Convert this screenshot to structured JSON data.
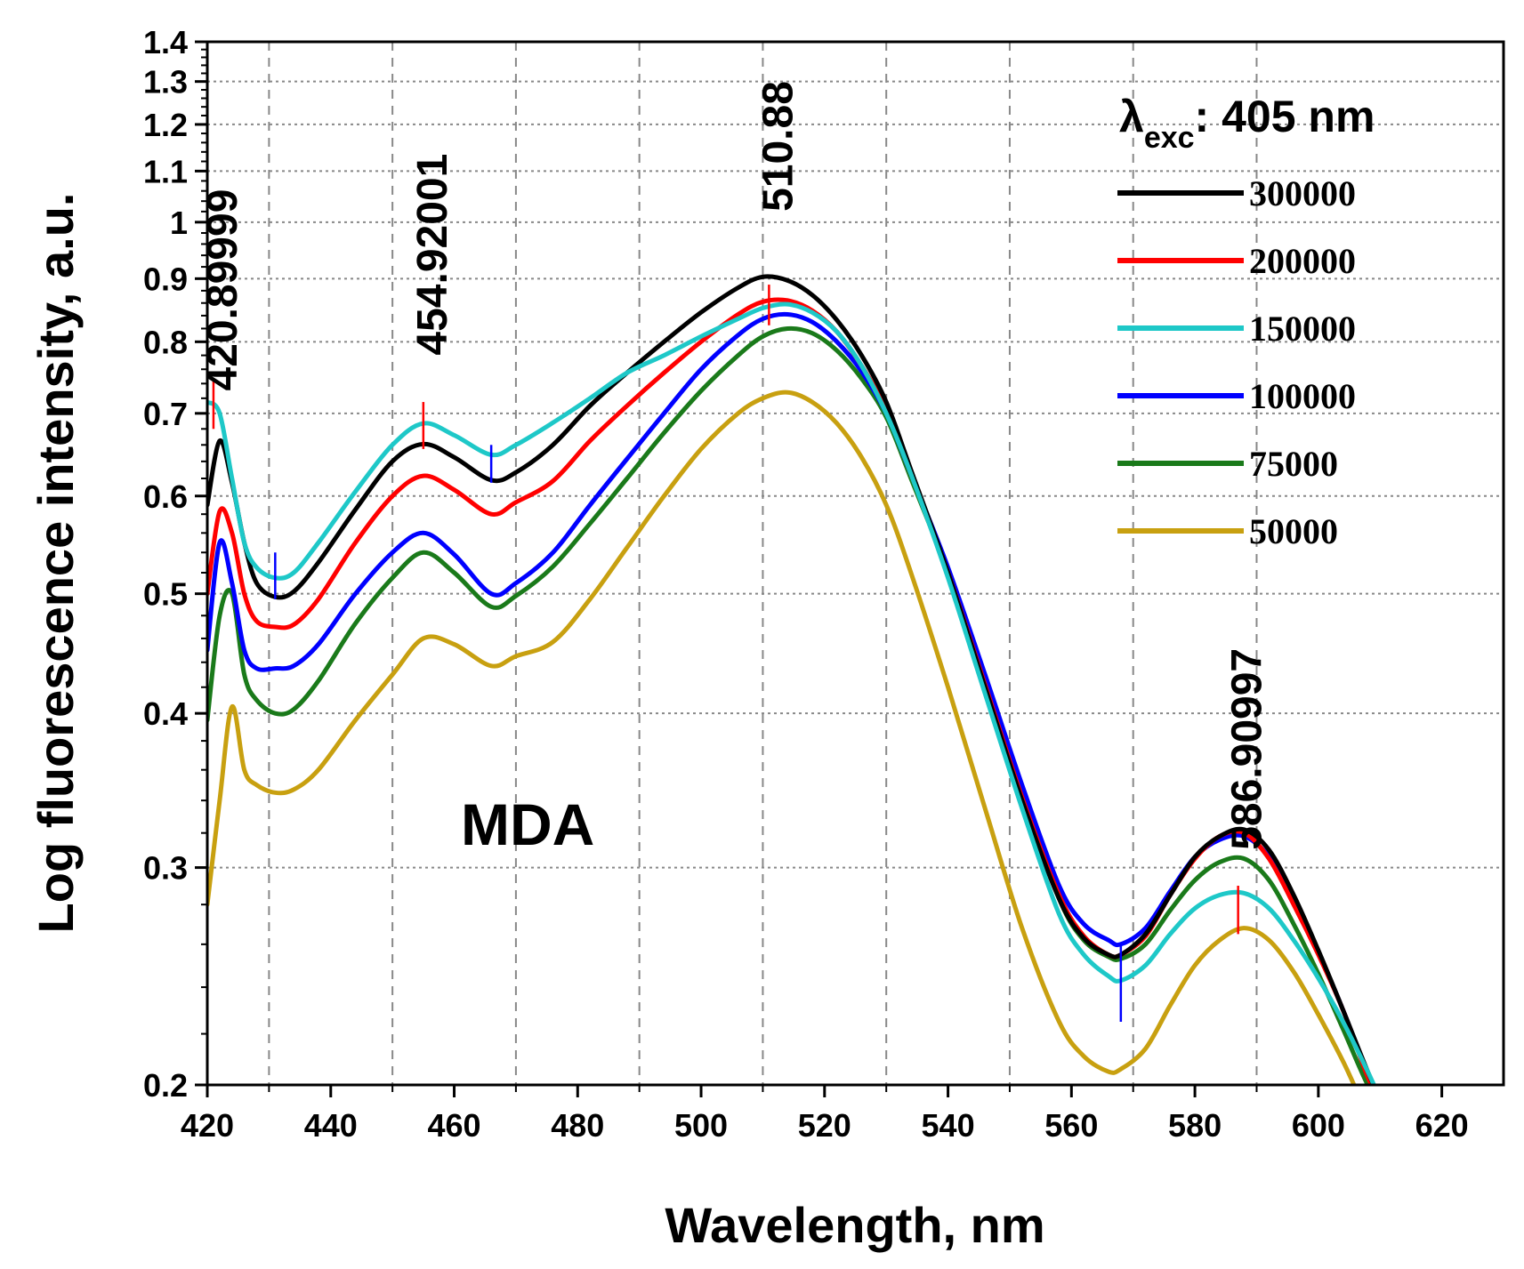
{
  "chart_data": {
    "type": "line",
    "xlabel": "Wavelength, nm",
    "ylabel": "Log fluorescence intensity, a.u.",
    "xlim": [
      420,
      630
    ],
    "ylim": [
      0.2,
      1.4
    ],
    "yscale": "log",
    "x_ticks": [
      420,
      440,
      460,
      480,
      500,
      520,
      540,
      560,
      580,
      600,
      620
    ],
    "x_tick_labels": [
      "420",
      "440",
      "460",
      "480",
      "500",
      "520",
      "540",
      "560",
      "580",
      "600",
      "620"
    ],
    "x_grid": [
      430,
      450,
      470,
      490,
      510,
      530,
      550,
      570,
      590
    ],
    "y_ticks": [
      0.2,
      0.3,
      0.4,
      0.5,
      0.6,
      0.7,
      0.8,
      0.9,
      1.0,
      1.1,
      1.2,
      1.3,
      1.4
    ],
    "y_tick_labels": [
      "0.2",
      "0.3",
      "0.4",
      "0.5",
      "0.6",
      "0.7",
      "0.8",
      "0.9",
      "1",
      "1.1",
      "1.2",
      "1.3",
      "1.4"
    ],
    "grid": true,
    "legend_title": "λ",
    "legend_title_sub": "exc",
    "legend_title_rest": ": 405 nm",
    "legend_position": "top-right",
    "inset_text": "MDA",
    "annotations": [
      {
        "text": "420.89999",
        "x": 421,
        "y": 0.73
      },
      {
        "text": "454.92001",
        "x": 455,
        "y": 0.78
      },
      {
        "text": "510.88",
        "x": 511,
        "y": 1.02
      },
      {
        "text": "586.90997",
        "x": 587,
        "y": 0.31
      }
    ],
    "peak_markers": [
      {
        "x": 421,
        "y_from": 0.68,
        "y_to": 0.745,
        "color": "#ff0000"
      },
      {
        "x": 431,
        "y_from": 0.495,
        "y_to": 0.54,
        "color": "#0000ff"
      },
      {
        "x": 455,
        "y_from": 0.655,
        "y_to": 0.715,
        "color": "#ff0000"
      },
      {
        "x": 466,
        "y_from": 0.615,
        "y_to": 0.66,
        "color": "#0000ff"
      },
      {
        "x": 511,
        "y_from": 0.825,
        "y_to": 0.89,
        "color": "#ff0000"
      },
      {
        "x": 568,
        "y_from": 0.225,
        "y_to": 0.26,
        "color": "#0000ff"
      },
      {
        "x": 587,
        "y_from": 0.265,
        "y_to": 0.29,
        "color": "#ff0000"
      }
    ],
    "x": [
      420,
      422,
      424,
      426,
      428,
      431,
      434,
      438,
      444,
      450,
      455,
      460,
      466,
      470,
      476,
      482,
      488,
      494,
      500,
      506,
      510,
      514,
      518,
      522,
      526,
      530,
      534,
      540,
      546,
      552,
      558,
      562,
      566,
      568,
      572,
      576,
      580,
      584,
      588,
      592,
      596,
      600,
      604,
      608,
      611
    ],
    "series": [
      {
        "name": "300000",
        "color": "#000000",
        "values": [
          0.59,
          0.665,
          0.615,
          0.55,
          0.51,
          0.497,
          0.502,
          0.53,
          0.585,
          0.64,
          0.661,
          0.645,
          0.618,
          0.627,
          0.66,
          0.71,
          0.755,
          0.8,
          0.845,
          0.885,
          0.903,
          0.897,
          0.873,
          0.833,
          0.78,
          0.715,
          0.63,
          0.52,
          0.42,
          0.34,
          0.283,
          0.263,
          0.255,
          0.255,
          0.265,
          0.285,
          0.306,
          0.318,
          0.322,
          0.31,
          0.285,
          0.257,
          0.23,
          0.205,
          0.19
        ]
      },
      {
        "name": "200000",
        "color": "#ff0000",
        "values": [
          0.5,
          0.583,
          0.56,
          0.5,
          0.475,
          0.47,
          0.472,
          0.495,
          0.55,
          0.6,
          0.623,
          0.607,
          0.58,
          0.593,
          0.617,
          0.665,
          0.71,
          0.755,
          0.8,
          0.842,
          0.862,
          0.864,
          0.848,
          0.815,
          0.765,
          0.705,
          0.625,
          0.52,
          0.422,
          0.342,
          0.285,
          0.264,
          0.255,
          0.255,
          0.264,
          0.285,
          0.305,
          0.318,
          0.32,
          0.305,
          0.28,
          0.255,
          0.23,
          0.203,
          0.19
        ]
      },
      {
        "name": "150000",
        "color": "#1ec8c8",
        "values": [
          0.715,
          0.7,
          0.62,
          0.55,
          0.525,
          0.515,
          0.52,
          0.55,
          0.605,
          0.66,
          0.687,
          0.672,
          0.648,
          0.66,
          0.688,
          0.72,
          0.755,
          0.78,
          0.808,
          0.835,
          0.852,
          0.858,
          0.845,
          0.815,
          0.765,
          0.7,
          0.625,
          0.515,
          0.415,
          0.335,
          0.275,
          0.255,
          0.245,
          0.243,
          0.25,
          0.265,
          0.278,
          0.285,
          0.286,
          0.278,
          0.262,
          0.244,
          0.225,
          0.205,
          0.19
        ]
      },
      {
        "name": "100000",
        "color": "#0000ff",
        "values": [
          0.45,
          0.55,
          0.51,
          0.45,
          0.435,
          0.435,
          0.437,
          0.455,
          0.5,
          0.54,
          0.56,
          0.538,
          0.5,
          0.51,
          0.54,
          0.59,
          0.643,
          0.7,
          0.76,
          0.81,
          0.835,
          0.842,
          0.83,
          0.8,
          0.757,
          0.7,
          0.625,
          0.525,
          0.43,
          0.35,
          0.29,
          0.27,
          0.262,
          0.26,
          0.268,
          0.287,
          0.306,
          0.316,
          0.318,
          0.306,
          0.282,
          0.256,
          0.23,
          0.204,
          0.19
        ]
      },
      {
        "name": "75000",
        "color": "#1a7a1a",
        "values": [
          0.395,
          0.48,
          0.5,
          0.43,
          0.41,
          0.4,
          0.403,
          0.425,
          0.473,
          0.515,
          0.54,
          0.52,
          0.488,
          0.498,
          0.526,
          0.57,
          0.62,
          0.675,
          0.73,
          0.78,
          0.808,
          0.82,
          0.813,
          0.787,
          0.747,
          0.695,
          0.62,
          0.52,
          0.423,
          0.345,
          0.283,
          0.262,
          0.254,
          0.253,
          0.26,
          0.277,
          0.293,
          0.303,
          0.305,
          0.293,
          0.27,
          0.246,
          0.222,
          0.2,
          0.19
        ]
      },
      {
        "name": "50000",
        "color": "#c8a010",
        "values": [
          0.28,
          0.34,
          0.405,
          0.36,
          0.35,
          0.345,
          0.347,
          0.36,
          0.395,
          0.43,
          0.46,
          0.455,
          0.437,
          0.445,
          0.457,
          0.495,
          0.545,
          0.6,
          0.655,
          0.7,
          0.72,
          0.728,
          0.715,
          0.687,
          0.645,
          0.59,
          0.52,
          0.42,
          0.335,
          0.268,
          0.225,
          0.211,
          0.205,
          0.206,
          0.214,
          0.232,
          0.25,
          0.262,
          0.268,
          0.262,
          0.247,
          0.228,
          0.209,
          0.19,
          0.185
        ]
      }
    ]
  }
}
